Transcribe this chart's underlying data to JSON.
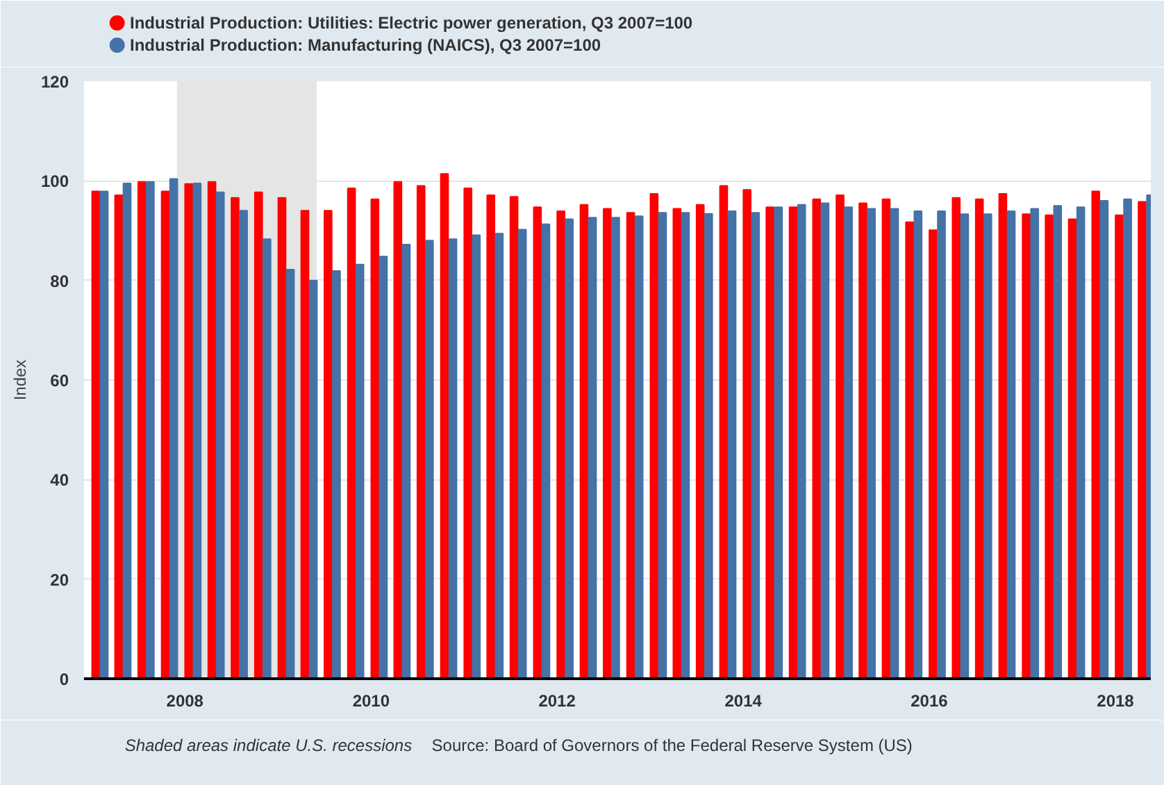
{
  "chart_data": {
    "type": "bar",
    "ylabel": "Index",
    "x": [
      "2007-01",
      "2007-04",
      "2007-07",
      "2007-10",
      "2008-01",
      "2008-04",
      "2008-07",
      "2008-10",
      "2009-01",
      "2009-04",
      "2009-07",
      "2009-10",
      "2010-01",
      "2010-04",
      "2010-07",
      "2010-10",
      "2011-01",
      "2011-04",
      "2011-07",
      "2011-10",
      "2012-01",
      "2012-04",
      "2012-07",
      "2012-10",
      "2013-01",
      "2013-04",
      "2013-07",
      "2013-10",
      "2014-01",
      "2014-04",
      "2014-07",
      "2014-10",
      "2015-01",
      "2015-04",
      "2015-07",
      "2015-10",
      "2016-01",
      "2016-04",
      "2016-07",
      "2016-10",
      "2017-01",
      "2017-04",
      "2017-07",
      "2017-10",
      "2018-01",
      "2018-04"
    ],
    "series": [
      {
        "name": "Industrial Production: Utilities: Electric power generation, Q3 2007=100",
        "color": "#ff0000",
        "values": [
          97.9,
          97.1,
          99.8,
          97.9,
          99.4,
          99.8,
          96.6,
          97.7,
          96.6,
          94.0,
          94.0,
          98.5,
          96.3,
          99.8,
          99.0,
          101.4,
          98.5,
          97.1,
          96.8,
          94.7,
          93.9,
          95.2,
          94.4,
          93.6,
          97.4,
          94.4,
          95.2,
          99.0,
          98.2,
          94.7,
          94.7,
          96.3,
          97.1,
          95.5,
          96.3,
          91.7,
          90.1,
          96.6,
          96.3,
          97.4,
          93.3,
          93.1,
          92.3,
          97.9,
          93.1,
          95.8
        ]
      },
      {
        "name": "Industrial Production: Manufacturing (NAICS), Q3 2007=100",
        "color": "#4572a7",
        "values": [
          97.9,
          99.5,
          99.8,
          100.4,
          99.5,
          97.7,
          94.0,
          88.3,
          82.2,
          80.0,
          81.9,
          83.2,
          84.8,
          87.2,
          88.0,
          88.3,
          89.1,
          89.4,
          90.2,
          91.3,
          92.3,
          92.6,
          92.6,
          92.9,
          93.6,
          93.6,
          93.4,
          93.9,
          93.6,
          94.7,
          95.2,
          95.5,
          94.7,
          94.4,
          94.4,
          93.9,
          93.9,
          93.3,
          93.3,
          93.9,
          94.4,
          95.0,
          94.7,
          96.0,
          96.3,
          97.1
        ]
      }
    ],
    "xlim": [
      "2006-12-01",
      "2018-05-20"
    ],
    "xticks": [
      "2008",
      "2010",
      "2012",
      "2014",
      "2016",
      "2018"
    ],
    "ylim": [
      0,
      120
    ],
    "yticks": [
      0,
      20,
      40,
      60,
      80,
      100,
      120
    ],
    "bands": [
      {
        "axis": "x",
        "from": "2007-12",
        "to": "2009-06",
        "color": "#e5e5e5"
      }
    ],
    "annotations": [
      "Shaded areas indicate U.S. recessions",
      "Source: Board of Governors of the Federal Reserve System (US)"
    ],
    "grid": "y",
    "legend": "top left"
  }
}
